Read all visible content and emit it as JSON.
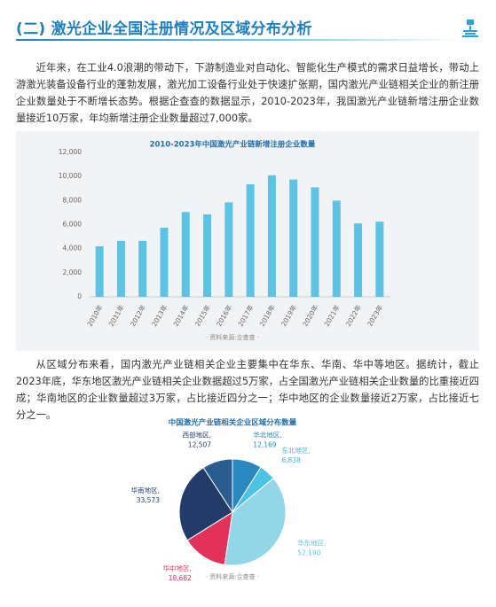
{
  "header": {
    "title": "(二) 激光企业全国注册情况及区域分布分析"
  },
  "paragraphs": [
    "近年来，在工业4.0浪潮的带动下，下游制造业对自动化、智能化生产模式的需求日益增长，带动上游激光装备设备行业的蓬勃发展，激光加工设备行业处于快速扩张期，国内激光产业链相关企业的新注册企业数量处于不断增长态势。根据企查查的数据显示，2010-2023年，我国激光产业链新增注册企业数量接近10万家，年均新增注册企业数量超过7,000家。",
    "从区域分布来看，国内激光产业链相关企业主要集中在华东、华南、华中等地区。据统计，截止2023年底，华东地区激光产业链相关企业数据超过5万家，占全国激光产业链相关企业数量的比重接近四成；华南地区的企业数量超过3万家，占比接近四分之一；华中地区的企业数量接近2万家，占比接近七分之一。"
  ],
  "chart_data": [
    {
      "type": "bar",
      "title": "2010-2023年中国激光产业链新增注册企业数量",
      "source": "· 资料来源:企查查 ·",
      "categories": [
        "2010年",
        "2011年",
        "2012年",
        "2013年",
        "2014年",
        "2015年",
        "2016年",
        "2017年",
        "2018年",
        "2019年",
        "2020年",
        "2021年",
        "2022年",
        "2023年"
      ],
      "values": [
        4200,
        4650,
        4650,
        5750,
        7050,
        6850,
        7850,
        9350,
        10100,
        9750,
        9100,
        8000,
        6100,
        6250
      ],
      "color": "#5cc4e2",
      "ylim": [
        0,
        12000
      ],
      "yticks": [
        0,
        {
          "value": 2000,
          "label": "2,000"
        },
        {
          "value": 4000,
          "label": "4,000"
        },
        {
          "value": 6000,
          "label": "6,000"
        },
        {
          "value": 8000,
          "label": "8,000"
        },
        {
          "value": 10000,
          "label": "10,000"
        },
        {
          "value": 12000,
          "label": "12,000"
        }
      ],
      "grid": false
    },
    {
      "type": "pie",
      "title": "中国激光产业链相关企业区域分布数量",
      "source": "· 资料来源:企查查 ·",
      "categories": [
        "华北地区,",
        "东北地区,",
        "华东地区,",
        "华中地区,",
        "华南地区,",
        "西部地区,"
      ],
      "values": [
        12169,
        6838,
        52190,
        18682,
        33573,
        12507
      ],
      "value_labels": [
        "12,169",
        "6,838",
        "52,190",
        "18,682",
        "33,573",
        "12,507"
      ],
      "colors": [
        "#2a88bf",
        "#4cc3e3",
        "#92d6e8",
        "#e2325c",
        "#233b68",
        "#2a5d8f"
      ],
      "label_colors": [
        "#2a88bf",
        "#3fb6d9",
        "#5ec3e0",
        "#e2325c",
        "#233b68",
        "#233b68"
      ]
    }
  ]
}
